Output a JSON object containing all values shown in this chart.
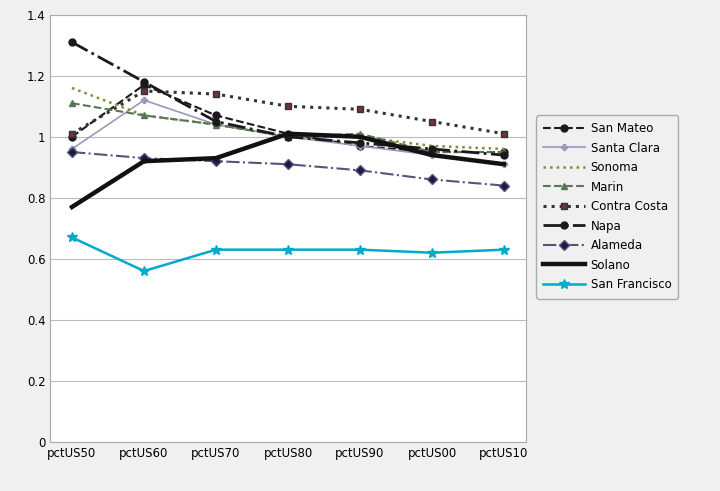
{
  "x_labels": [
    "pctUS50",
    "pctUS60",
    "pctUS70",
    "pctUS80",
    "pctUS90",
    "pctUS00",
    "pctUS10"
  ],
  "series": {
    "San Mateo": [
      1.0,
      1.17,
      1.07,
      1.01,
      0.97,
      0.95,
      0.95
    ],
    "Santa Clara": [
      0.96,
      1.12,
      1.04,
      1.0,
      0.97,
      0.94,
      0.91
    ],
    "Sonoma": [
      1.16,
      1.07,
      1.04,
      1.0,
      1.0,
      0.97,
      0.96
    ],
    "Marin": [
      1.11,
      1.07,
      1.04,
      1.0,
      1.01,
      0.95,
      0.95
    ],
    "Contra Costa": [
      1.01,
      1.15,
      1.14,
      1.1,
      1.09,
      1.05,
      1.01
    ],
    "Napa": [
      1.31,
      1.18,
      1.05,
      1.0,
      0.98,
      0.96,
      0.94
    ],
    "Alameda": [
      0.95,
      0.93,
      0.92,
      0.91,
      0.89,
      0.86,
      0.84
    ],
    "Solano": [
      0.77,
      0.92,
      0.93,
      1.01,
      1.0,
      0.94,
      0.91
    ],
    "San Francisco": [
      0.67,
      0.56,
      0.63,
      0.63,
      0.63,
      0.62,
      0.63
    ]
  },
  "styles": {
    "San Mateo": {
      "color": "#1a1a1a",
      "linestyle": "--",
      "marker": "o",
      "linewidth": 1.5,
      "markersize": 5,
      "markerfacecolor": "#1a1a1a"
    },
    "Santa Clara": {
      "color": "#9999bb",
      "linestyle": "-",
      "marker": "P",
      "linewidth": 1.2,
      "markersize": 5,
      "markerfacecolor": "#9999bb"
    },
    "Sonoma": {
      "color": "#888833",
      "linestyle": ":",
      "marker": "None",
      "linewidth": 1.8,
      "markersize": 5,
      "markerfacecolor": "#888833"
    },
    "Marin": {
      "color": "#557755",
      "linestyle": "--",
      "marker": "^",
      "linewidth": 1.5,
      "markersize": 5,
      "markerfacecolor": "#557755"
    },
    "Contra Costa": {
      "color": "#333333",
      "linestyle": ":",
      "marker": "s",
      "linewidth": 2.2,
      "markersize": 5,
      "markerfacecolor": "#7a3030"
    },
    "Napa": {
      "color": "#1a1a1a",
      "linestyle": "-.",
      "marker": "o",
      "linewidth": 2.0,
      "markersize": 5,
      "markerfacecolor": "#1a1a1a"
    },
    "Alameda": {
      "color": "#555577",
      "linestyle": "-.",
      "marker": "D",
      "linewidth": 1.5,
      "markersize": 5,
      "markerfacecolor": "#1a1a44"
    },
    "Solano": {
      "color": "#111111",
      "linestyle": "-",
      "marker": "None",
      "linewidth": 3.2,
      "markersize": 5,
      "markerfacecolor": "#111111"
    },
    "San Francisco": {
      "color": "#00aacc",
      "linestyle": "-",
      "marker": "*",
      "linewidth": 1.8,
      "markersize": 7,
      "markerfacecolor": "#00aacc"
    }
  },
  "ylim": [
    0,
    1.4
  ],
  "yticks": [
    0,
    0.2,
    0.4,
    0.6,
    0.8,
    1.0,
    1.2,
    1.4
  ],
  "background_color": "#f0f0f0",
  "plot_bg_color": "#ffffff",
  "grid_color": "#bbbbbb",
  "border_color": "#aaaaaa",
  "figsize": [
    7.2,
    4.91
  ],
  "dpi": 100,
  "legend_fontsize": 8.5,
  "tick_fontsize": 8.5
}
